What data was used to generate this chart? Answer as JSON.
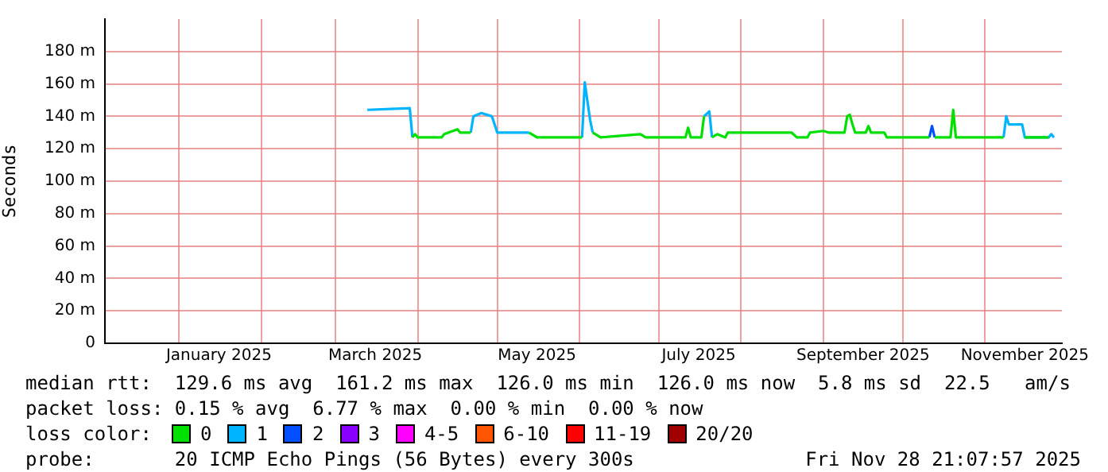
{
  "chart_data": {
    "type": "line",
    "ylabel": "Seconds",
    "legend_title": "loss color:",
    "legend": "bottom",
    "grid": true,
    "xlim": [
      "2024-12-04",
      "2025-11-30"
    ],
    "xticks": [
      {
        "value": "2025-01-01",
        "label": null
      },
      {
        "value": "2025-01-16",
        "label": "January 2025"
      },
      {
        "value": "2025-02-01",
        "label": null
      },
      {
        "value": "2025-03-01",
        "label": null
      },
      {
        "value": "2025-03-16",
        "label": "March 2025"
      },
      {
        "value": "2025-04-01",
        "label": null
      },
      {
        "value": "2025-05-01",
        "label": null
      },
      {
        "value": "2025-05-16",
        "label": "May 2025"
      },
      {
        "value": "2025-06-01",
        "label": null
      },
      {
        "value": "2025-07-01",
        "label": null
      },
      {
        "value": "2025-07-16",
        "label": "July 2025"
      },
      {
        "value": "2025-08-01",
        "label": null
      },
      {
        "value": "2025-09-01",
        "label": null
      },
      {
        "value": "2025-09-16",
        "label": "September 2025"
      },
      {
        "value": "2025-10-01",
        "label": null
      },
      {
        "value": "2025-11-01",
        "label": null
      },
      {
        "value": "2025-11-16",
        "label": "November 2025"
      }
    ],
    "ylim": [
      0,
      200
    ],
    "yticks": [
      0,
      {
        "value": 20,
        "label": "20 m"
      },
      {
        "value": 40,
        "label": "40 m"
      },
      {
        "value": 60,
        "label": "60 m"
      },
      {
        "value": 80,
        "label": "80 m"
      },
      {
        "value": 100,
        "label": "100 m"
      },
      {
        "value": 120,
        "label": "120 m"
      },
      {
        "value": 140,
        "label": "140 m"
      },
      {
        "value": 160,
        "label": "160 m"
      },
      {
        "value": 180,
        "label": "180 m"
      }
    ],
    "x": [
      "2025-03-13",
      "2025-03-29",
      "2025-03-30",
      "2025-03-31",
      "2025-04-01",
      "2025-04-10",
      "2025-04-11",
      "2025-04-16",
      "2025-04-17",
      "2025-04-21",
      "2025-04-22",
      "2025-04-25",
      "2025-04-29",
      "2025-05-01",
      "2025-05-13",
      "2025-05-16",
      "2025-06-02",
      "2025-06-03",
      "2025-06-05",
      "2025-06-06",
      "2025-06-09",
      "2025-06-24",
      "2025-06-26",
      "2025-07-11",
      "2025-07-12",
      "2025-07-13",
      "2025-07-17",
      "2025-07-18",
      "2025-07-20",
      "2025-07-21",
      "2025-07-23",
      "2025-07-26",
      "2025-07-27",
      "2025-08-20",
      "2025-08-22",
      "2025-08-26",
      "2025-08-27",
      "2025-09-01",
      "2025-09-03",
      "2025-09-09",
      "2025-09-10",
      "2025-09-11",
      "2025-09-12",
      "2025-09-13",
      "2025-09-17",
      "2025-09-18",
      "2025-09-19",
      "2025-09-24",
      "2025-09-25",
      "2025-10-11",
      "2025-10-12",
      "2025-10-13",
      "2025-10-19",
      "2025-10-20",
      "2025-10-21",
      "2025-11-08",
      "2025-11-09",
      "2025-11-10",
      "2025-11-15",
      "2025-11-16",
      "2025-11-25",
      "2025-11-26",
      "2025-11-27"
    ],
    "series": [
      {
        "name": "0",
        "color": "#00e000",
        "values": [
          null,
          null,
          127,
          129,
          127,
          127,
          129,
          132,
          130,
          130,
          null,
          null,
          null,
          null,
          130,
          127,
          127,
          null,
          null,
          130,
          127,
          129,
          127,
          127,
          133,
          127,
          127,
          140,
          null,
          127,
          129,
          127,
          130,
          130,
          127,
          127,
          130,
          131,
          130,
          130,
          140,
          141,
          135,
          130,
          130,
          134,
          130,
          130,
          127,
          127,
          null,
          127,
          127,
          144,
          127,
          127,
          null,
          null,
          null,
          127,
          127,
          null,
          null
        ]
      },
      {
        "name": "1",
        "color": "#00b4ff",
        "values": [
          144,
          145,
          127,
          null,
          null,
          null,
          null,
          null,
          null,
          130,
          140,
          142,
          140,
          130,
          130,
          null,
          127,
          161,
          138,
          130,
          null,
          null,
          null,
          null,
          null,
          null,
          null,
          140,
          143,
          127,
          null,
          null,
          null,
          null,
          null,
          null,
          null,
          null,
          null,
          null,
          null,
          null,
          null,
          null,
          null,
          null,
          null,
          null,
          null,
          null,
          null,
          null,
          null,
          null,
          null,
          127,
          140,
          135,
          135,
          127,
          127,
          129,
          127
        ]
      },
      {
        "name": "2",
        "color": "#0050ff",
        "values": [
          null,
          null,
          null,
          null,
          null,
          null,
          null,
          null,
          null,
          null,
          null,
          null,
          null,
          null,
          null,
          null,
          null,
          null,
          null,
          null,
          null,
          null,
          null,
          null,
          null,
          null,
          null,
          null,
          null,
          null,
          null,
          null,
          null,
          null,
          null,
          null,
          null,
          null,
          null,
          null,
          null,
          null,
          null,
          null,
          null,
          null,
          null,
          null,
          null,
          127,
          134,
          127,
          null,
          null,
          null,
          null,
          null,
          null,
          null,
          null,
          null,
          null,
          null
        ]
      },
      {
        "name": "3",
        "color": "#8a00ff",
        "values": [
          null,
          null,
          null,
          null,
          null,
          null,
          null,
          null,
          null,
          null,
          null,
          null,
          null,
          null,
          null,
          null,
          null,
          null,
          null,
          null,
          null,
          null,
          null,
          null,
          null,
          null,
          null,
          null,
          null,
          null,
          null,
          null,
          null,
          null,
          null,
          null,
          null,
          null,
          null,
          null,
          null,
          null,
          null,
          null,
          null,
          null,
          null,
          null,
          null,
          null,
          null,
          null,
          null,
          null,
          null,
          null,
          null,
          null,
          null,
          null,
          null,
          null,
          null
        ]
      },
      {
        "name": "4-5",
        "color": "#ff00ff",
        "values": [
          null,
          null,
          null,
          null,
          null,
          null,
          null,
          null,
          null,
          null,
          null,
          null,
          null,
          null,
          null,
          null,
          null,
          null,
          null,
          null,
          null,
          null,
          null,
          null,
          null,
          null,
          null,
          null,
          null,
          null,
          null,
          null,
          null,
          null,
          null,
          null,
          null,
          null,
          null,
          null,
          null,
          null,
          null,
          null,
          null,
          null,
          null,
          null,
          null,
          null,
          null,
          null,
          null,
          null,
          null,
          null,
          null,
          null,
          null,
          null,
          null,
          null,
          null
        ]
      },
      {
        "name": "6-10",
        "color": "#ff5500",
        "values": [
          null,
          null,
          null,
          null,
          null,
          null,
          null,
          null,
          null,
          null,
          null,
          null,
          null,
          null,
          null,
          null,
          null,
          null,
          null,
          null,
          null,
          null,
          null,
          null,
          null,
          null,
          null,
          null,
          null,
          null,
          null,
          null,
          null,
          null,
          null,
          null,
          null,
          null,
          null,
          null,
          null,
          null,
          null,
          null,
          null,
          null,
          null,
          null,
          null,
          null,
          null,
          null,
          null,
          null,
          null,
          null,
          null,
          null,
          null,
          null,
          null,
          null,
          null
        ]
      },
      {
        "name": "11-19",
        "color": "#ff0000",
        "values": [
          null,
          null,
          null,
          null,
          null,
          null,
          null,
          null,
          null,
          null,
          null,
          null,
          null,
          null,
          null,
          null,
          null,
          null,
          null,
          null,
          null,
          null,
          null,
          null,
          null,
          null,
          null,
          null,
          null,
          null,
          null,
          null,
          null,
          null,
          null,
          null,
          null,
          null,
          null,
          null,
          null,
          null,
          null,
          null,
          null,
          null,
          null,
          null,
          null,
          null,
          null,
          null,
          null,
          null,
          null,
          null,
          null,
          null,
          null,
          null,
          null,
          null,
          null
        ]
      },
      {
        "name": "20/20",
        "color": "#a10000",
        "values": [
          null,
          null,
          null,
          null,
          null,
          null,
          null,
          null,
          null,
          null,
          null,
          null,
          null,
          null,
          null,
          null,
          null,
          null,
          null,
          null,
          null,
          null,
          null,
          null,
          null,
          null,
          null,
          null,
          null,
          null,
          null,
          null,
          null,
          null,
          null,
          null,
          null,
          null,
          null,
          null,
          null,
          null,
          null,
          null,
          null,
          null,
          null,
          null,
          null,
          null,
          null,
          null,
          null,
          null,
          null,
          null,
          null,
          null,
          null,
          null,
          null,
          null,
          null
        ]
      }
    ],
    "annotations": [
      "median rtt:  129.6 ms avg  161.2 ms max  126.0 ms min  126.0 ms now  5.8 ms sd  22.5   am/s",
      "packet loss: 0.15 % avg  6.77 % max  0.00 % min  0.00 % now",
      "probe:       20 ICMP Echo Pings (56 Bytes) every 300s",
      "Fri Nov 28 21:07:57 2025"
    ]
  }
}
